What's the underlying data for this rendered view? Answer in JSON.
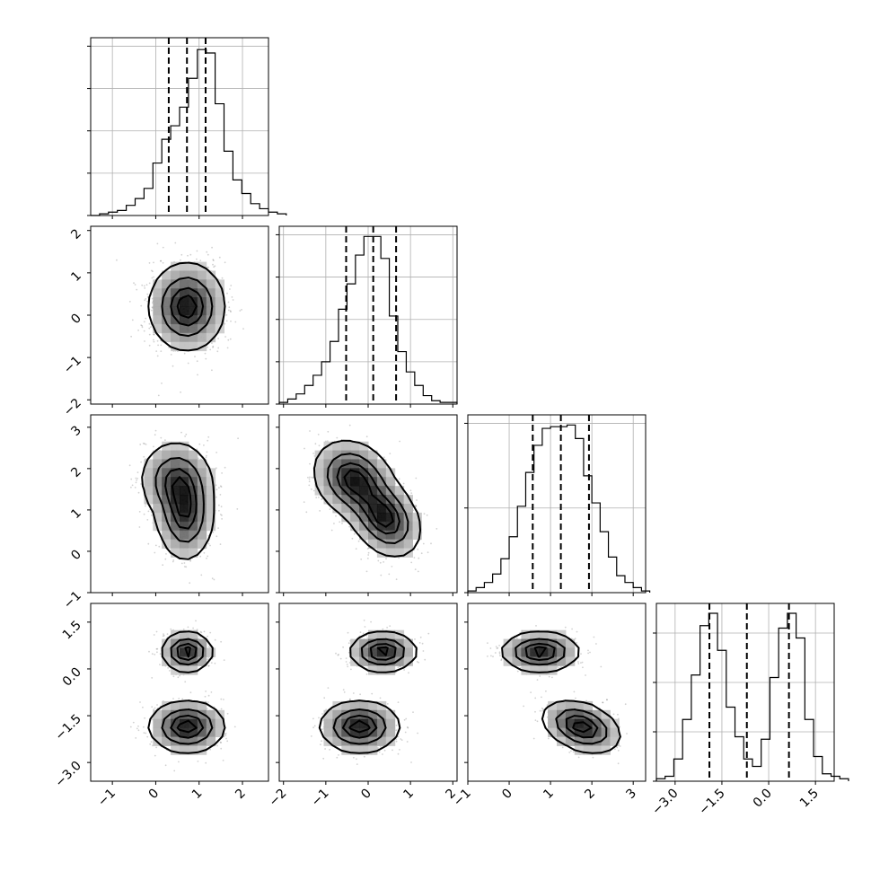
{
  "chart_data": {
    "type": "corner",
    "parameters": 4,
    "axes": [
      {
        "range": [
          -1.5,
          2.6
        ],
        "ticks": [
          -1,
          0,
          1,
          2
        ],
        "tick_labels": [
          "−1",
          "0",
          "1",
          "2"
        ]
      },
      {
        "range": [
          -2.1,
          2.1
        ],
        "ticks": [
          -2,
          -1,
          0,
          1,
          2
        ],
        "tick_labels": [
          "−2",
          "−1",
          "0",
          "1",
          "2"
        ]
      },
      {
        "range": [
          -1.0,
          3.3
        ],
        "ticks": [
          -1,
          0,
          1,
          2,
          3
        ],
        "tick_labels": [
          "−1",
          "0",
          "1",
          "2",
          "3"
        ]
      },
      {
        "range": [
          -3.6,
          2.1
        ],
        "ticks": [
          -3.0,
          -1.5,
          0.0,
          1.5
        ],
        "tick_labels": [
          "−3.0",
          "−1.5",
          "0.0",
          "1.5"
        ]
      }
    ],
    "histograms": [
      {
        "edges_start": -1.5,
        "bin_width": 0.205,
        "counts": [
          0,
          1,
          2,
          3,
          6,
          10,
          16,
          31,
          45,
          53,
          64,
          81,
          98,
          96,
          66,
          38,
          21,
          13,
          7,
          4,
          2,
          1
        ],
        "quantiles": [
          0.3,
          0.72,
          1.15
        ],
        "y_ticks": [
          0,
          25,
          50,
          75,
          100
        ],
        "y_max": 105
      },
      {
        "edges_start": -2.1,
        "bin_width": 0.2,
        "counts": [
          1,
          3,
          6,
          11,
          17,
          25,
          37,
          56,
          71,
          88,
          99,
          99,
          86,
          52,
          31,
          19,
          11,
          5,
          2,
          1,
          1
        ],
        "quantiles": [
          -0.52,
          0.12,
          0.66
        ],
        "y_ticks": [
          0,
          25,
          50,
          75,
          100
        ],
        "y_max": 105
      },
      {
        "edges_start": -1.0,
        "bin_width": 0.2,
        "counts": [
          1,
          3,
          6,
          11,
          20,
          33,
          51,
          71,
          87,
          97,
          98,
          98,
          99,
          91,
          69,
          53,
          36,
          21,
          10,
          6,
          3,
          1
        ],
        "quantiles": [
          0.57,
          1.25,
          1.93
        ],
        "y_ticks": [
          0,
          50,
          100
        ],
        "y_max": 105
      },
      {
        "edges_start": -3.6,
        "bin_width": 0.28,
        "counts": [
          1,
          2,
          9,
          25,
          43,
          63,
          68,
          53,
          30,
          18,
          9,
          6,
          17,
          42,
          62,
          68,
          58,
          25,
          10,
          3,
          2,
          1
        ],
        "quantiles": [
          -1.9,
          -0.7,
          0.65
        ],
        "y_ticks": [
          0,
          20,
          40,
          60
        ],
        "y_max": 72
      }
    ],
    "joint": [
      {
        "row": 1,
        "col": 0,
        "components": [
          {
            "mean": [
              0.72,
              0.2
            ],
            "sd": [
              0.42,
              0.5
            ],
            "rho": 0.0,
            "w": 1
          }
        ]
      },
      {
        "row": 2,
        "col": 0,
        "components": [
          {
            "mean": [
              0.68,
              0.9
            ],
            "sd": [
              0.32,
              0.55
            ],
            "rho": 0.0,
            "w": 0.55
          },
          {
            "mean": [
              0.45,
              1.75
            ],
            "sd": [
              0.4,
              0.45
            ],
            "rho": 0.0,
            "w": 0.45
          }
        ]
      },
      {
        "row": 2,
        "col": 1,
        "components": [
          {
            "mean": [
              0.4,
              0.8
            ],
            "sd": [
              0.4,
              0.45
            ],
            "rho": -0.3,
            "w": 0.5
          },
          {
            "mean": [
              -0.35,
              1.75
            ],
            "sd": [
              0.45,
              0.45
            ],
            "rho": -0.2,
            "w": 0.5
          }
        ]
      },
      {
        "row": 3,
        "col": 0,
        "components": [
          {
            "mean": [
              0.72,
              0.55
            ],
            "sd": [
              0.28,
              0.3
            ],
            "rho": 0.0,
            "w": 0.5
          },
          {
            "mean": [
              0.72,
              -1.85
            ],
            "sd": [
              0.42,
              0.4
            ],
            "rho": 0.0,
            "w": 0.5
          }
        ]
      },
      {
        "row": 3,
        "col": 1,
        "components": [
          {
            "mean": [
              0.35,
              0.55
            ],
            "sd": [
              0.38,
              0.3
            ],
            "rho": 0.0,
            "w": 0.5
          },
          {
            "mean": [
              -0.2,
              -1.85
            ],
            "sd": [
              0.45,
              0.4
            ],
            "rho": 0.0,
            "w": 0.5
          }
        ]
      },
      {
        "row": 3,
        "col": 2,
        "components": [
          {
            "mean": [
              0.75,
              0.55
            ],
            "sd": [
              0.45,
              0.3
            ],
            "rho": 0.0,
            "w": 0.5
          },
          {
            "mean": [
              1.75,
              -1.85
            ],
            "sd": [
              0.45,
              0.4
            ],
            "rho": -0.35,
            "w": 0.5
          }
        ]
      }
    ],
    "contour_levels": [
      0.118,
      0.393,
      0.675,
      0.865
    ],
    "grid": true,
    "title": "",
    "xlabel": "",
    "ylabel": ""
  }
}
